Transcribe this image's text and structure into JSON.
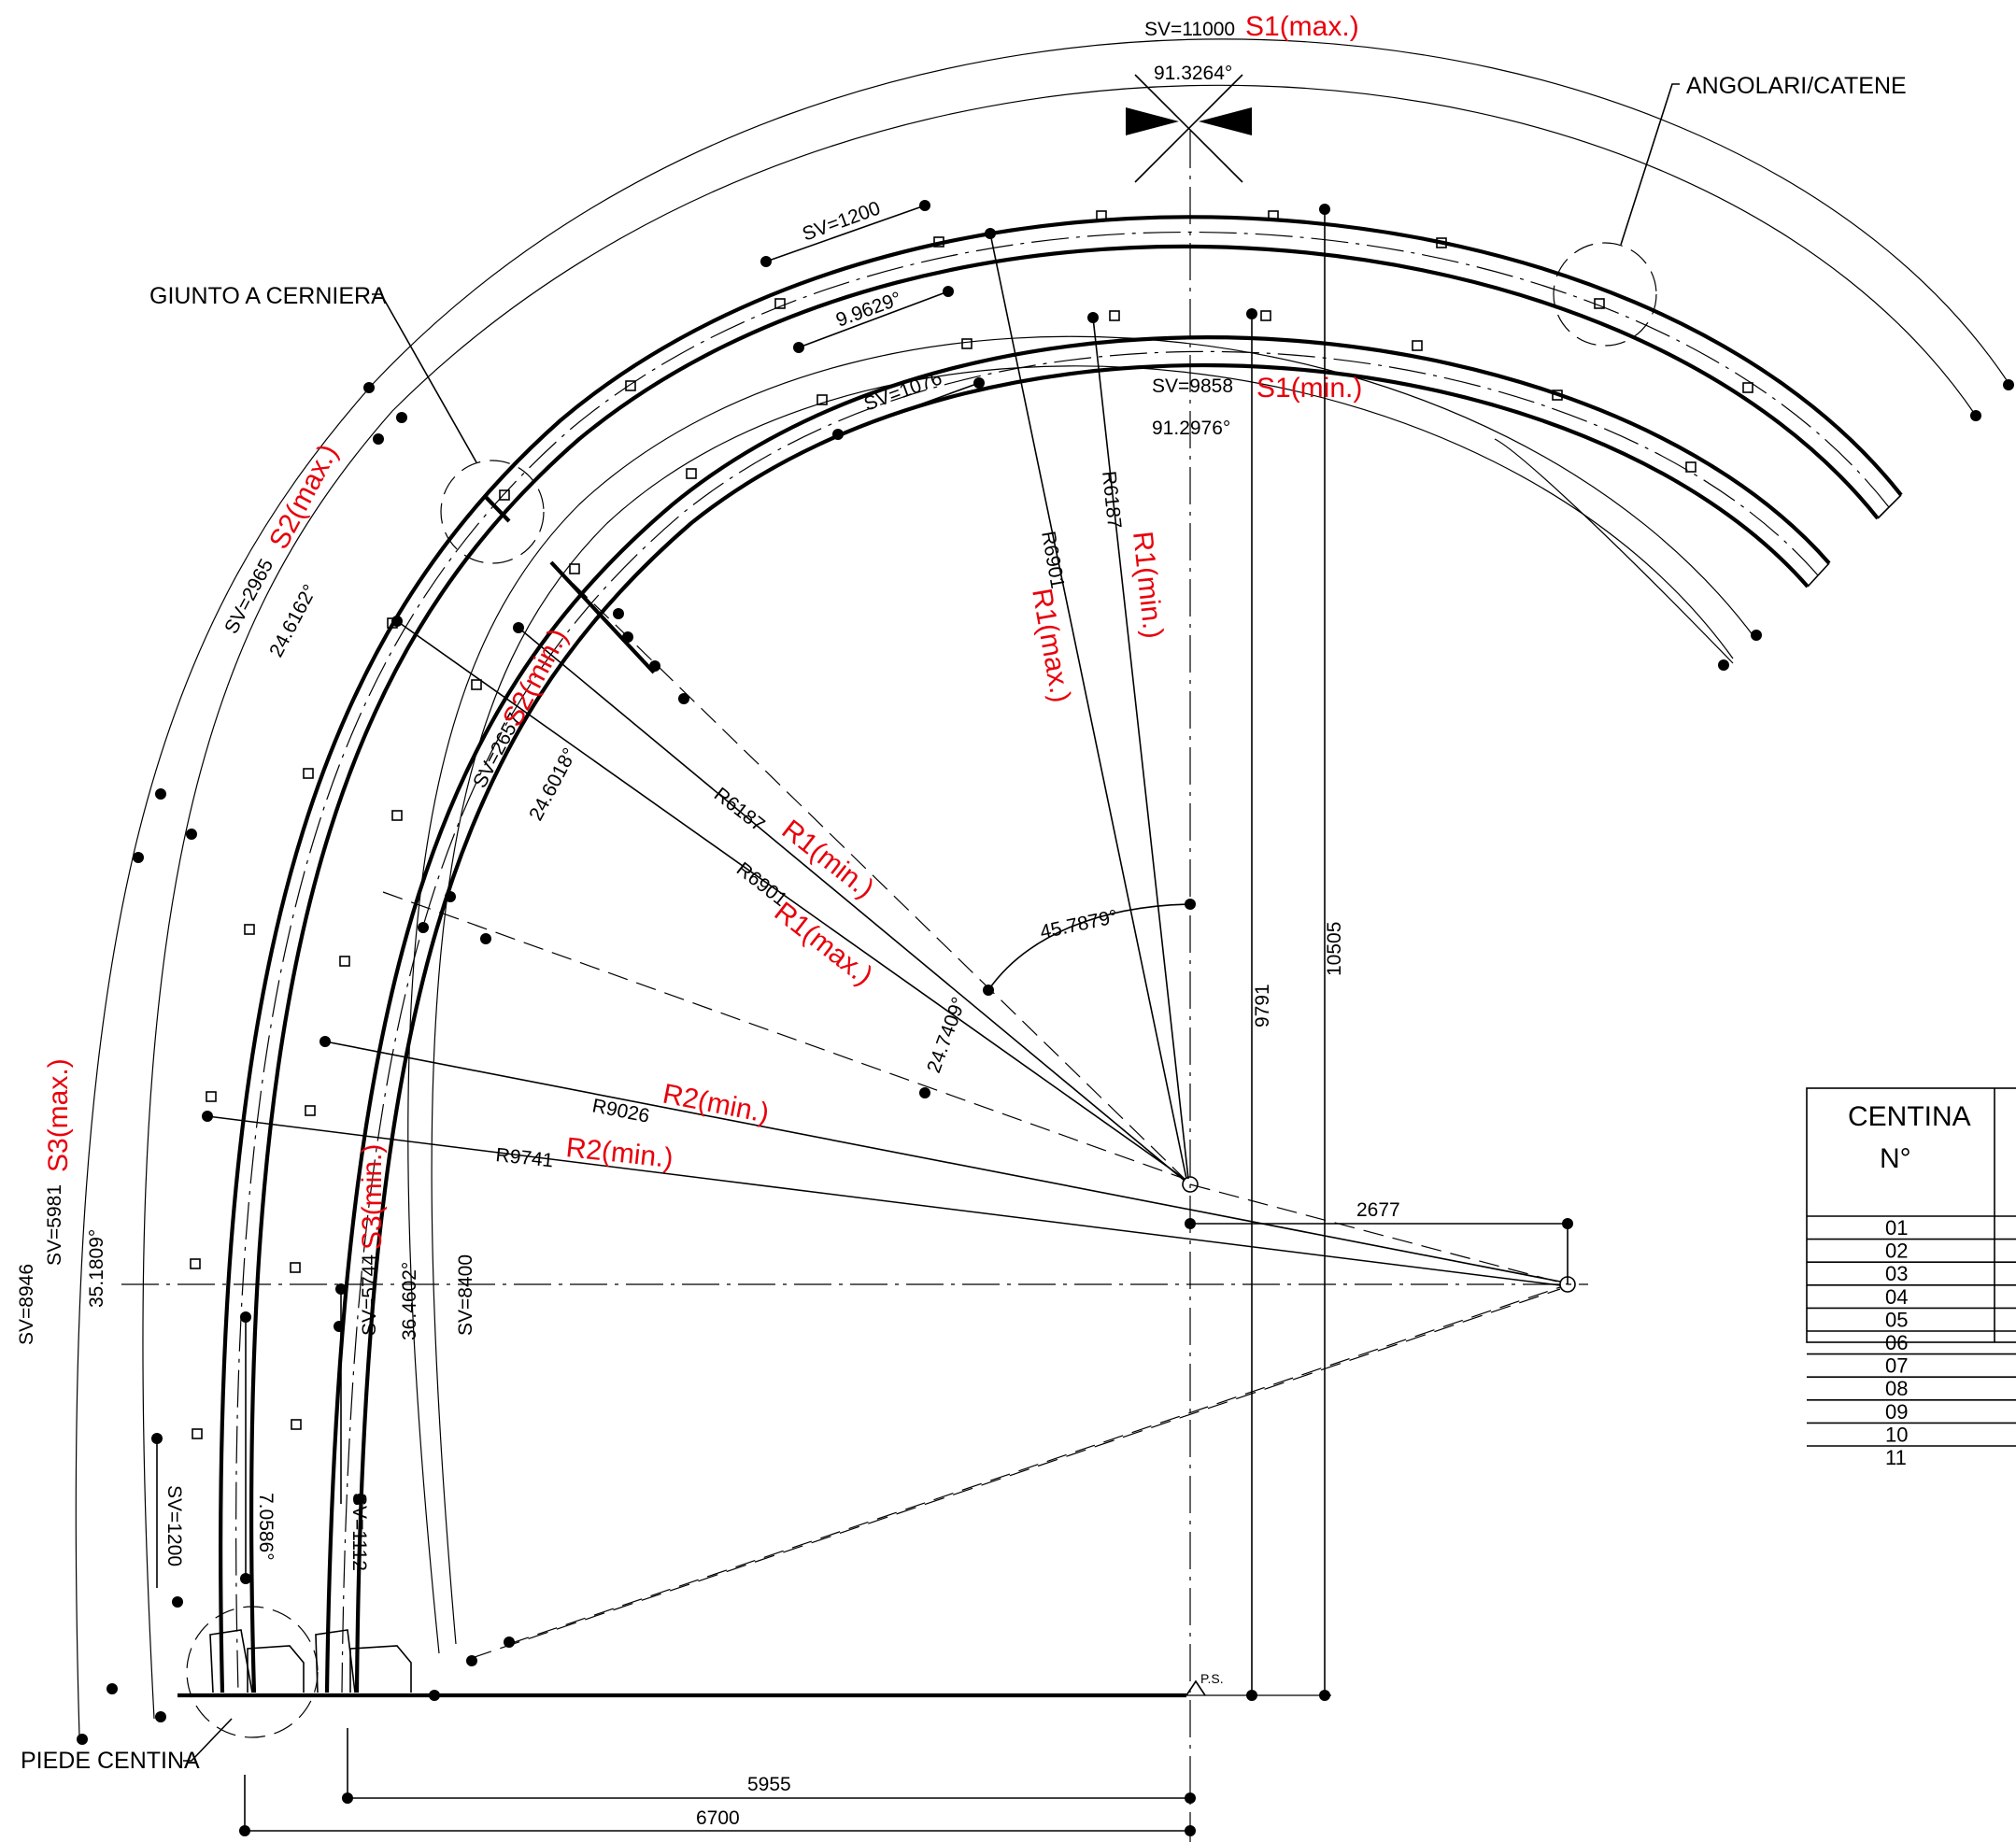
{
  "callouts": {
    "angolari": "ANGOLARI/CATENE",
    "giunto": "GIUNTO A CERNIERA",
    "piede": "PIEDE CENTINA",
    "ps": "P.S."
  },
  "s1_max": {
    "sv": "SV=11000",
    "tag": "S1(max.)",
    "angle": "91.3264°"
  },
  "s1_min": {
    "sv": "SV=9858",
    "tag": "S1(min.)",
    "angle": "91.2976°"
  },
  "s2_max": {
    "sv": "SV=2965",
    "tag": "S2(max.)",
    "angle": "24.6162°"
  },
  "s2_min": {
    "sv": "SV=2657",
    "tag": "S2(min.)",
    "angle": "24.6018°"
  },
  "s3_max": {
    "sv_outer": "SV=8946",
    "sv": "SV=5981",
    "tag": "S3(max.)",
    "angle": "35.1809°"
  },
  "s3_min": {
    "sv": "SV=5744",
    "tag": "S3(min.)",
    "angle": "36.4602°",
    "sv_inner": "SV=8400"
  },
  "segments": {
    "top_outer": "SV=1200",
    "top_inner": "SV=1076",
    "top_angle": "9.9629°",
    "foot_outer": "SV=1200",
    "foot_inner": "SV=1112",
    "foot_angle": "7.0586°"
  },
  "radii": {
    "r6901_vert": "R6901",
    "r1_max_vert": "R1(max.)",
    "r6187_vert": "R6187",
    "r1_min_vert": "R1(min.)",
    "r6187_diag": "R6187",
    "r1_min_diag": "R1(min.)",
    "r6901_diag": "R6901",
    "r1_max_diag": "R1(max.)",
    "r9026": "R9026",
    "r2_min_a": "R2(min.)",
    "r9741": "R9741",
    "r2_min_b": "R2(min.)"
  },
  "angles": {
    "center_top": "45.7879°",
    "center_side": "24.7409°"
  },
  "dimensions": {
    "h9791": "9791",
    "h10505": "10505",
    "w2677": "2677",
    "w5955": "5955",
    "w6700": "6700"
  },
  "table": {
    "header_line1": "CENTINA",
    "header_line2": "N°",
    "rows": [
      "01",
      "02",
      "03",
      "04",
      "05",
      "06",
      "07",
      "08",
      "09",
      "10",
      "11"
    ]
  }
}
